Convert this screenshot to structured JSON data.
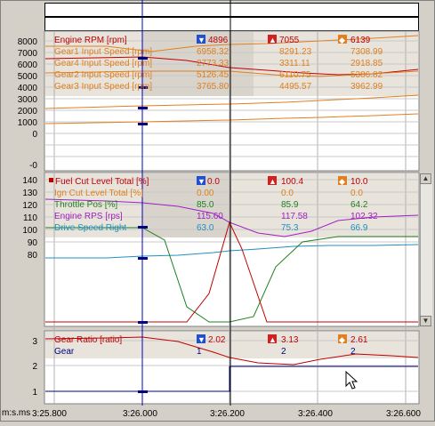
{
  "top_strips": [
    "",
    ""
  ],
  "panel1": {
    "y_ticks": [
      "8000",
      "7000",
      "6000",
      "5000",
      "4000",
      "3000",
      "2000",
      "1000",
      "0",
      "-0"
    ],
    "header_cursor": "▼",
    "header_max": "▲",
    "header_min": "◆",
    "rows": [
      {
        "name": "Engine RPM [rpm]",
        "cursor": "4896",
        "max": "7055",
        "min": "6139",
        "color": "#c00000"
      },
      {
        "name": "Gear1 Input Speed [rpm]",
        "cursor": "6958.32",
        "max": "8291.23",
        "min": "7308.99",
        "color": "#e08020"
      },
      {
        "name": "Gear4 Input Speed [rpm]",
        "cursor": "2773.33",
        "max": "3311.11",
        "min": "2918.85",
        "color": "#e08020"
      },
      {
        "name": "Gear2 Input Speed [rpm]",
        "cursor": "5126.45",
        "max": "6110.75",
        "min": "5386.82",
        "color": "#e08020"
      },
      {
        "name": "Gear3 Input Speed [rpm]",
        "cursor": "3765.80",
        "max": "4495.57",
        "min": "3962.99",
        "color": "#e08020"
      }
    ]
  },
  "panel2": {
    "y_ticks": [
      "140",
      "130",
      "120",
      "110",
      "100",
      "90",
      "80"
    ],
    "rows": [
      {
        "name": "Fuel Cut Level Total [%]",
        "cursor": "0.0",
        "max": "100.4",
        "min": "10.0",
        "color": "#c00000"
      },
      {
        "name": "Ign Cut Level Total [%]",
        "cursor": "0.00",
        "max": "0.0",
        "min": "0.0",
        "color": "#e08020"
      },
      {
        "name": "Throttle Pos [%]",
        "cursor": "85.0",
        "max": "85.9",
        "min": "64.2",
        "color": "#208020"
      },
      {
        "name": "Engine RPS [rps]",
        "cursor": "115.60",
        "max": "117.58",
        "min": "102.32",
        "color": "#a020c0"
      },
      {
        "name": "Drive Speed Right",
        "cursor": "63.0",
        "max": "75.3",
        "min": "66.9",
        "color": "#2090c0"
      }
    ]
  },
  "panel3": {
    "y_ticks": [
      "3",
      "2",
      "1"
    ],
    "rows": [
      {
        "name": "Gear Ratio [ratio]",
        "cursor": "2.02",
        "max": "3.13",
        "min": "2.61",
        "color": "#c00000"
      },
      {
        "name": "Gear",
        "cursor": "1",
        "max": "2",
        "min": "2",
        "color": "#000080"
      }
    ]
  },
  "x_axis": {
    "unit": "m:s.ms",
    "ticks": [
      "3:25.800",
      "3:26.000",
      "3:26.200",
      "3:26.400",
      "3:26.600"
    ]
  },
  "colors": {
    "cursor_blue": "#0000c0",
    "grid": "#b0b0b0",
    "header_band": "#e8e4dc"
  }
}
